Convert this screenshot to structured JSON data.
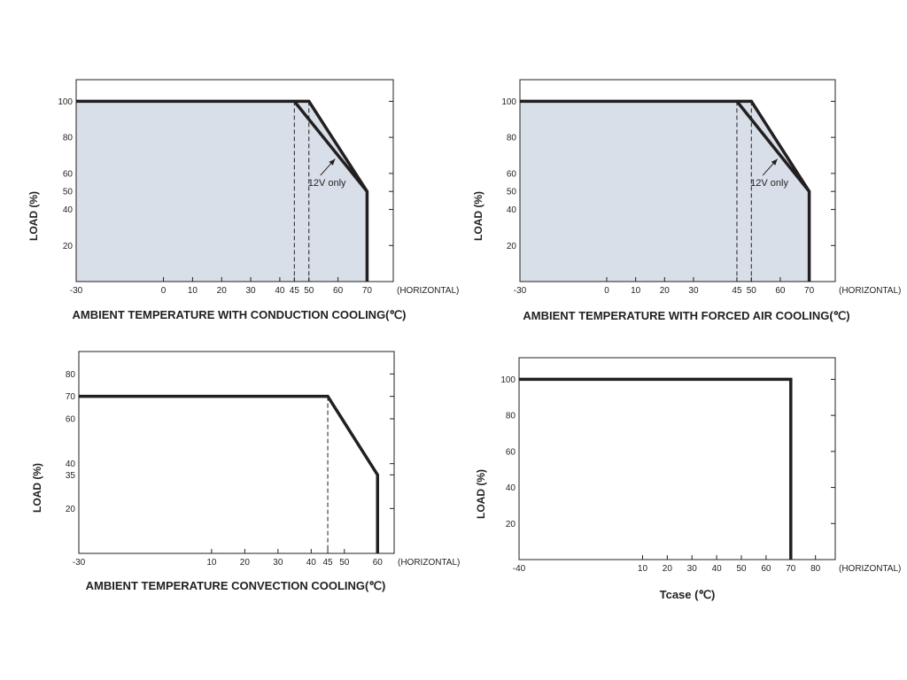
{
  "chart_data": [
    {
      "type": "line",
      "title": "",
      "xlabel": "AMBIENT TEMPERATURE WITH  CONDUCTION COOLING(℃)",
      "ylabel": "LOAD (%)",
      "x_unit_label": "(HORIZONTAL)",
      "xlim": [
        -30,
        79
      ],
      "ylim": [
        0,
        112
      ],
      "x_ticks": [
        -30,
        0,
        10,
        20,
        30,
        40,
        45,
        50,
        60,
        70
      ],
      "y_ticks": [
        20,
        40,
        50,
        60,
        80,
        100
      ],
      "shaded_region": true,
      "series": [
        {
          "x": [
            -30,
            50,
            70,
            70
          ],
          "y": [
            100,
            100,
            50,
            0
          ]
        },
        {
          "x": [
            45,
            70
          ],
          "y": [
            100,
            50
          ]
        }
      ],
      "dashed_lines": [
        {
          "x": 45,
          "y_top": 100
        },
        {
          "x": 50,
          "y_top": 100
        }
      ],
      "annotation": {
        "text": "12V only",
        "x": 57,
        "y": 54,
        "arrow_to_x": 59,
        "arrow_to_y": 68
      }
    },
    {
      "type": "line",
      "title": "",
      "xlabel": "AMBIENT TEMPERATURE WITH  FORCED AIR COOLING(℃)",
      "ylabel": "LOAD (%)",
      "x_unit_label": "(HORIZONTAL)",
      "xlim": [
        -30,
        79
      ],
      "ylim": [
        0,
        112
      ],
      "x_ticks": [
        -30,
        0,
        10,
        20,
        30,
        45,
        50,
        60,
        70
      ],
      "y_ticks": [
        20,
        40,
        50,
        60,
        80,
        100
      ],
      "shaded_region": true,
      "series": [
        {
          "x": [
            -30,
            50,
            70,
            70
          ],
          "y": [
            100,
            100,
            50,
            0
          ]
        },
        {
          "x": [
            45,
            70
          ],
          "y": [
            100,
            50
          ]
        }
      ],
      "dashed_lines": [
        {
          "x": 45,
          "y_top": 100
        },
        {
          "x": 50,
          "y_top": 100
        }
      ],
      "annotation": {
        "text": "12V only",
        "x": 57,
        "y": 54,
        "arrow_to_x": 59,
        "arrow_to_y": 68
      }
    },
    {
      "type": "line",
      "title": "",
      "xlabel": "AMBIENT TEMPERATURE CONVECTION COOLING(℃)",
      "ylabel": "LOAD (%)",
      "x_unit_label": "(HORIZONTAL)",
      "xlim": [
        -30,
        65
      ],
      "ylim": [
        0,
        90
      ],
      "x_ticks": [
        -30,
        10,
        20,
        30,
        40,
        45,
        50,
        60
      ],
      "y_ticks": [
        20,
        35,
        40,
        60,
        70,
        80
      ],
      "shaded_region": false,
      "series": [
        {
          "x": [
            -30,
            45,
            60,
            60
          ],
          "y": [
            70,
            70,
            35,
            0
          ]
        }
      ],
      "dashed_lines": [
        {
          "x": 45,
          "y_top": 70
        }
      ]
    },
    {
      "type": "line",
      "title": "",
      "xlabel": "Tcase (℃)",
      "ylabel": "LOAD (%)",
      "x_unit_label": "(HORIZONTAL)",
      "xlim": [
        -40,
        88
      ],
      "ylim": [
        0,
        112
      ],
      "x_ticks": [
        -40,
        10,
        20,
        30,
        40,
        50,
        60,
        70,
        80
      ],
      "y_ticks": [
        20,
        40,
        60,
        80,
        100
      ],
      "shaded_region": false,
      "series": [
        {
          "x": [
            -40,
            70,
            70
          ],
          "y": [
            100,
            100,
            0
          ]
        }
      ],
      "dashed_lines": []
    }
  ]
}
